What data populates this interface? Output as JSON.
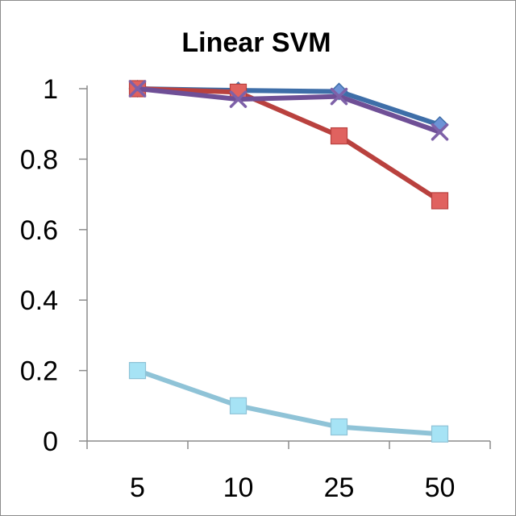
{
  "chart_data": {
    "type": "line",
    "title": "Linear SVM",
    "xlabel": "",
    "ylabel": "",
    "categories": [
      "5",
      "10",
      "25",
      "50"
    ],
    "ylim": [
      0,
      1
    ],
    "yticks": [
      "0",
      "0.2",
      "0.4",
      "0.6",
      "0.8",
      "1"
    ],
    "grid": false,
    "legend": "none",
    "series": [
      {
        "marker": "diamond",
        "color": "#3e6ea8",
        "fill": "#6d93d6",
        "values": [
          1.0,
          0.995,
          0.992,
          0.897
        ]
      },
      {
        "marker": "square",
        "color": "#b9413e",
        "fill": "#e0625f",
        "values": [
          1.0,
          0.99,
          0.866,
          0.682
        ]
      },
      {
        "marker": "x",
        "color": "#6f4f96",
        "fill": "#7e61a8",
        "values": [
          1.0,
          0.97,
          0.978,
          0.877
        ]
      },
      {
        "marker": "square",
        "color": "#8fc3d7",
        "fill": "#a6e3f5",
        "values": [
          0.2,
          0.1,
          0.04,
          0.02
        ]
      }
    ]
  }
}
